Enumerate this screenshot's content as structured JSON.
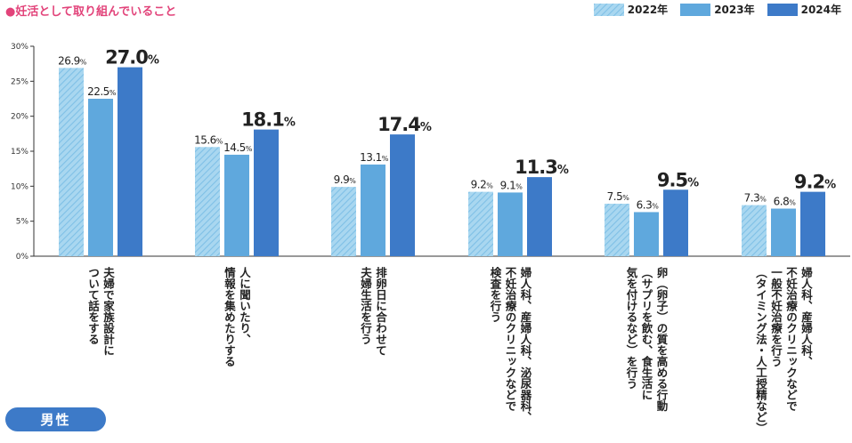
{
  "header": {
    "title": "●妊活として取り組んでいること"
  },
  "badge": {
    "label": "男性"
  },
  "colors": {
    "y2022": "#92cbe9",
    "y2023": "#5fa8dd",
    "y2024": "#3d7ac8"
  },
  "chart_data": {
    "type": "bar",
    "title": "●妊活として取り組んでいること",
    "ylim": [
      0,
      30
    ],
    "yticks": [
      "0%",
      "5%",
      "10%",
      "15%",
      "20%",
      "25%",
      "30%"
    ],
    "legend_position": "top-right",
    "grid": false,
    "categories": [
      [
        "夫婦で家族設計に",
        "ついて話をする"
      ],
      [
        "人に聞いたり、",
        "情報を集めたりする"
      ],
      [
        "排卵日に合わせて",
        "夫婦生活を行う"
      ],
      [
        "婦人科、産婦人科、泌尿器科、",
        "不妊治療のクリニックなどで",
        "検査を行う"
      ],
      [
        "卵（卵子）の質を高める行動",
        "（サプリを飲む、食生活に",
        "気を付けるなど）を行う"
      ],
      [
        "婦人科、産婦人科、",
        "不妊治療のクリニックなどで",
        "一般不妊治療を行う",
        "（タイミング法・人工授精など）"
      ]
    ],
    "series": [
      {
        "name": "2022年",
        "values": [
          26.9,
          15.6,
          9.9,
          9.2,
          7.5,
          7.3
        ]
      },
      {
        "name": "2023年",
        "values": [
          22.5,
          14.5,
          13.1,
          9.1,
          6.3,
          6.8
        ]
      },
      {
        "name": "2024年",
        "values": [
          27.0,
          18.1,
          17.4,
          11.3,
          9.5,
          9.2
        ]
      }
    ],
    "value_labels": [
      [
        "26.9",
        "15.6",
        "9.9",
        "9.2",
        "7.5",
        "7.3"
      ],
      [
        "22.5",
        "14.5",
        "13.1",
        "9.1",
        "6.3",
        "6.8"
      ],
      [
        "27.0",
        "18.1",
        "17.4",
        "11.3",
        "9.5",
        "9.2"
      ]
    ],
    "unit": "%"
  }
}
